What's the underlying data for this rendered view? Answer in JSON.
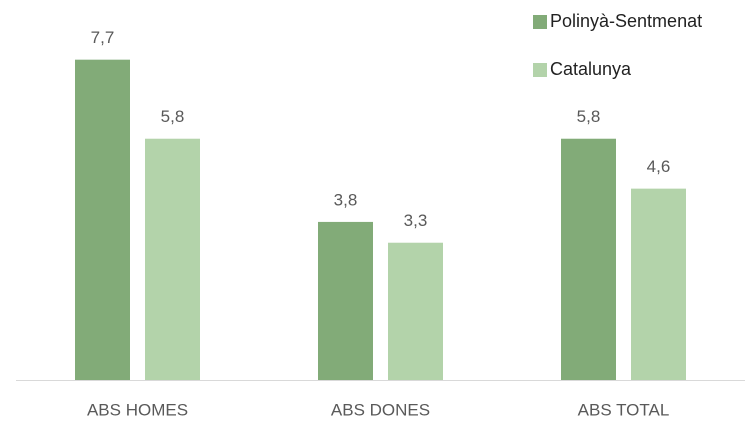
{
  "chart_data": {
    "type": "bar",
    "categories": [
      "ABS HOMES",
      "ABS DONES",
      "ABS TOTAL"
    ],
    "series": [
      {
        "name": "Polinyà-Sentmenat",
        "color": "#82ab78",
        "values": [
          7.7,
          3.8,
          5.8
        ],
        "value_labels": [
          "7,7",
          "3,8",
          "5,8"
        ]
      },
      {
        "name": "Catalunya",
        "color": "#b3d3aa",
        "values": [
          5.8,
          3.3,
          4.6
        ],
        "value_labels": [
          "5,8",
          "3,3",
          "4,6"
        ]
      }
    ],
    "legend": "top-right"
  }
}
